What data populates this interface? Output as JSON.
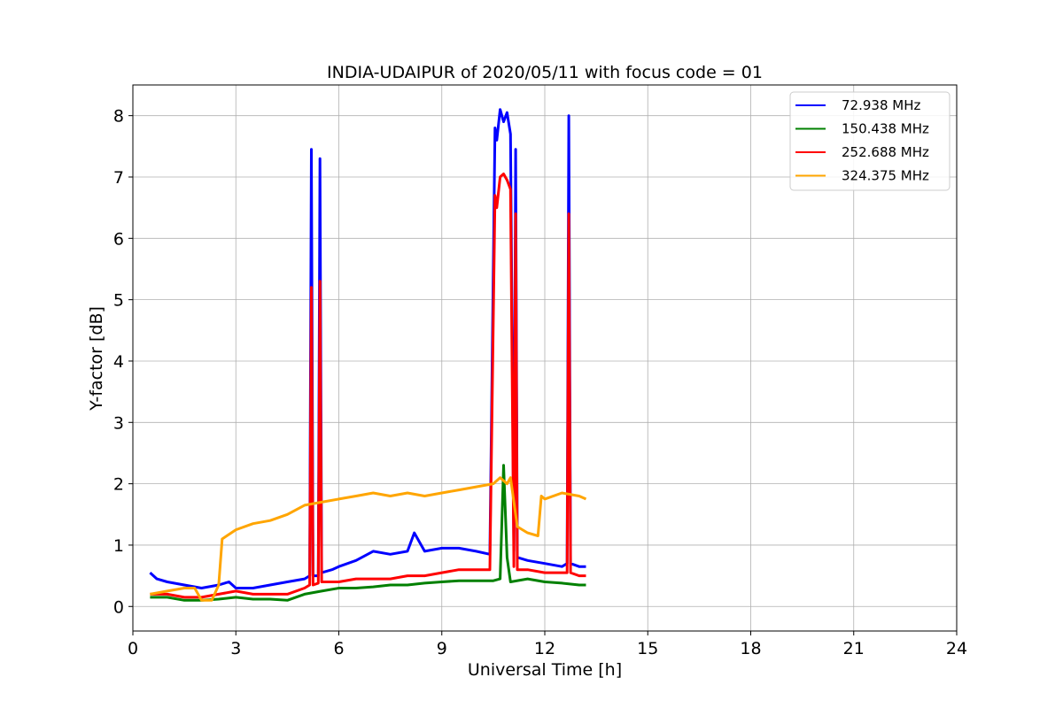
{
  "chart_data": {
    "type": "line",
    "title": "INDIA-UDAIPUR of 2020/05/11 with focus code = 01",
    "xlabel": "Universal Time [h]",
    "ylabel": "Y-factor [dB]",
    "xlim": [
      0,
      24
    ],
    "ylim": [
      -0.4,
      8.5
    ],
    "xticks": [
      0,
      3,
      6,
      9,
      12,
      15,
      18,
      21,
      24
    ],
    "yticks": [
      0,
      1,
      2,
      3,
      4,
      5,
      6,
      7,
      8
    ],
    "grid": true,
    "legend_position": "top-right",
    "series": [
      {
        "name": " 72.938 MHz",
        "color": "#0000ff",
        "x": [
          0.5,
          0.7,
          1.0,
          1.5,
          2.0,
          2.5,
          2.8,
          3.0,
          3.5,
          4.0,
          4.5,
          5.0,
          5.15,
          5.2,
          5.25,
          5.4,
          5.45,
          5.5,
          5.8,
          6.0,
          6.5,
          7.0,
          7.5,
          8.0,
          8.2,
          8.5,
          9.0,
          9.5,
          10.0,
          10.4,
          10.55,
          10.6,
          10.7,
          10.8,
          10.9,
          11.0,
          11.1,
          11.15,
          11.2,
          11.5,
          12.0,
          12.5,
          12.65,
          12.7,
          12.75,
          13.0,
          13.2
        ],
        "y": [
          0.55,
          0.45,
          0.4,
          0.35,
          0.3,
          0.35,
          0.4,
          0.3,
          0.3,
          0.35,
          0.4,
          0.45,
          0.5,
          7.45,
          0.5,
          0.5,
          7.3,
          0.55,
          0.6,
          0.65,
          0.75,
          0.9,
          0.85,
          0.9,
          1.2,
          0.9,
          0.95,
          0.95,
          0.9,
          0.85,
          7.8,
          7.6,
          8.1,
          7.9,
          8.05,
          7.7,
          0.9,
          7.45,
          0.8,
          0.75,
          0.7,
          0.65,
          0.7,
          8.0,
          0.7,
          0.65,
          0.65
        ]
      },
      {
        "name": "150.438 MHz",
        "color": "#008000",
        "x": [
          0.5,
          1.0,
          1.5,
          2.0,
          2.5,
          3.0,
          3.5,
          4.0,
          4.5,
          5.0,
          5.5,
          6.0,
          6.5,
          7.0,
          7.5,
          8.0,
          8.5,
          9.0,
          9.5,
          10.0,
          10.5,
          10.7,
          10.8,
          10.9,
          11.0,
          11.5,
          12.0,
          12.5,
          13.0,
          13.2
        ],
        "y": [
          0.15,
          0.15,
          0.1,
          0.1,
          0.12,
          0.15,
          0.12,
          0.12,
          0.1,
          0.2,
          0.25,
          0.3,
          0.3,
          0.32,
          0.35,
          0.35,
          0.38,
          0.4,
          0.42,
          0.42,
          0.42,
          0.45,
          2.3,
          0.8,
          0.4,
          0.45,
          0.4,
          0.38,
          0.35,
          0.35
        ]
      },
      {
        "name": "252.688 MHz",
        "color": "#ff0000",
        "x": [
          0.5,
          1.0,
          1.5,
          2.0,
          2.5,
          3.0,
          3.5,
          4.0,
          4.5,
          5.0,
          5.15,
          5.2,
          5.25,
          5.4,
          5.45,
          5.5,
          6.0,
          6.5,
          7.0,
          7.5,
          8.0,
          8.5,
          9.0,
          9.5,
          10.0,
          10.4,
          10.55,
          10.6,
          10.7,
          10.8,
          10.9,
          11.0,
          11.1,
          11.15,
          11.2,
          11.5,
          12.0,
          12.5,
          12.65,
          12.7,
          12.75,
          13.0,
          13.2
        ],
        "y": [
          0.2,
          0.2,
          0.15,
          0.15,
          0.2,
          0.25,
          0.2,
          0.2,
          0.2,
          0.3,
          0.35,
          5.2,
          0.35,
          0.38,
          5.3,
          0.4,
          0.4,
          0.45,
          0.45,
          0.45,
          0.5,
          0.5,
          0.55,
          0.6,
          0.6,
          0.6,
          6.7,
          6.5,
          7.0,
          7.05,
          6.95,
          6.8,
          0.65,
          6.4,
          0.6,
          0.6,
          0.55,
          0.55,
          0.55,
          6.4,
          0.55,
          0.5,
          0.5
        ]
      },
      {
        "name": "324.375 MHz",
        "color": "#ffa500",
        "x": [
          0.5,
          1.0,
          1.5,
          1.8,
          2.0,
          2.3,
          2.5,
          2.6,
          3.0,
          3.5,
          4.0,
          4.5,
          5.0,
          5.5,
          6.0,
          6.5,
          7.0,
          7.5,
          8.0,
          8.5,
          9.0,
          9.5,
          10.0,
          10.5,
          10.7,
          10.9,
          11.0,
          11.2,
          11.5,
          11.8,
          11.9,
          12.0,
          12.5,
          13.0,
          13.2
        ],
        "y": [
          0.2,
          0.25,
          0.3,
          0.3,
          0.1,
          0.1,
          0.35,
          1.1,
          1.25,
          1.35,
          1.4,
          1.5,
          1.65,
          1.7,
          1.75,
          1.8,
          1.85,
          1.8,
          1.85,
          1.8,
          1.85,
          1.9,
          1.95,
          2.0,
          2.1,
          2.0,
          2.1,
          1.3,
          1.2,
          1.15,
          1.8,
          1.75,
          1.85,
          1.8,
          1.75
        ]
      }
    ]
  }
}
